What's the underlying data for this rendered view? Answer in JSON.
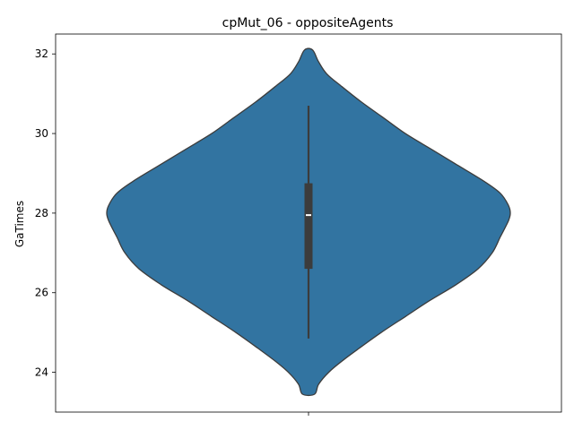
{
  "chart_data": {
    "type": "violin",
    "title": "cpMut_06 - oppositeAgents",
    "xlabel": "",
    "ylabel": "GaTimes",
    "ylim": [
      23.0,
      32.5
    ],
    "yticks": [
      24,
      26,
      28,
      30,
      32
    ],
    "grid": false,
    "legend": "none",
    "color": "#3274a1",
    "edge_color": "#3c3c3c",
    "density_profile": [
      [
        23.45,
        0.03
      ],
      [
        23.7,
        0.05
      ],
      [
        24.0,
        0.1
      ],
      [
        24.3,
        0.17
      ],
      [
        24.6,
        0.25
      ],
      [
        25.0,
        0.36
      ],
      [
        25.4,
        0.48
      ],
      [
        25.8,
        0.6
      ],
      [
        26.2,
        0.73
      ],
      [
        26.6,
        0.84
      ],
      [
        27.0,
        0.91
      ],
      [
        27.4,
        0.95
      ],
      [
        27.8,
        0.99
      ],
      [
        28.0,
        1.0
      ],
      [
        28.2,
        0.99
      ],
      [
        28.5,
        0.95
      ],
      [
        28.8,
        0.87
      ],
      [
        29.2,
        0.74
      ],
      [
        29.6,
        0.61
      ],
      [
        30.0,
        0.48
      ],
      [
        30.4,
        0.37
      ],
      [
        30.8,
        0.26
      ],
      [
        31.2,
        0.16
      ],
      [
        31.5,
        0.09
      ],
      [
        31.8,
        0.05
      ],
      [
        32.1,
        0.02
      ]
    ],
    "box": {
      "q1": 26.6,
      "median": 27.95,
      "q3": 28.75,
      "whisker_low": 24.85,
      "whisker_high": 30.7
    }
  }
}
